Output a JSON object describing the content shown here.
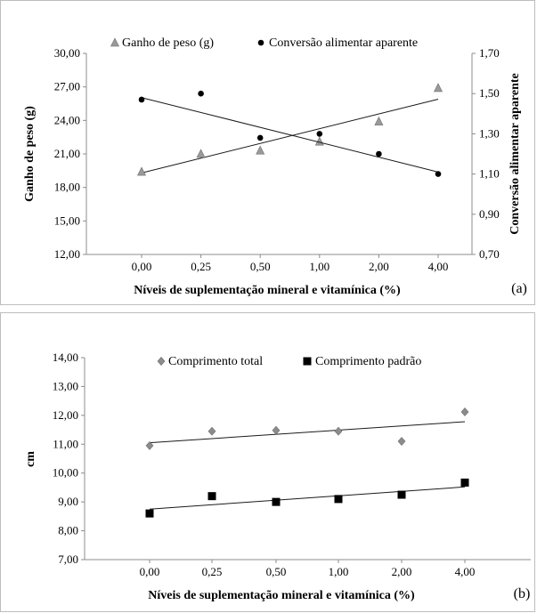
{
  "chart_data": [
    {
      "panel_label": "(a)",
      "type": "scatter",
      "x_categories": [
        "0,00",
        "0,25",
        "0,50",
        "1,00",
        "2,00",
        "4,00"
      ],
      "xlabel": "Níveis de suplementação mineral e vitamínica (%)",
      "ylabel": "Ganho de peso (g)",
      "ylabel_right": "Conversão alimentar aparente",
      "ylim": [
        12,
        30
      ],
      "ylim_right": [
        0.7,
        1.7
      ],
      "yticks": [
        "12,00",
        "15,00",
        "18,00",
        "21,00",
        "24,00",
        "27,00",
        "30,00"
      ],
      "yticks_right": [
        "0,70",
        "0,90",
        "1,10",
        "1,30",
        "1,50",
        "1,70"
      ],
      "legend_position": "top",
      "grid": false,
      "series": [
        {
          "name": "Ganho de peso (g)",
          "axis": "left",
          "marker": "triangle",
          "color": "#9a9a9a",
          "values": [
            19.4,
            21.0,
            21.3,
            22.1,
            23.9,
            26.9
          ],
          "trendline": [
            19.3,
            25.9
          ]
        },
        {
          "name": "Conversão alimentar aparente",
          "axis": "right",
          "marker": "circle",
          "color": "#000000",
          "values": [
            1.47,
            1.5,
            1.28,
            1.3,
            1.2,
            1.1
          ],
          "trendline": [
            1.48,
            1.11
          ]
        }
      ]
    },
    {
      "panel_label": "(b)",
      "type": "scatter",
      "x_categories": [
        "0,00",
        "0,25",
        "0,50",
        "1,00",
        "2,00",
        "4,00"
      ],
      "xlabel": "Níveis de suplementação mineral e vitamínica (%)",
      "ylabel": "cm",
      "ylim": [
        7,
        14
      ],
      "yticks": [
        "7,00",
        "8,00",
        "9,00",
        "10,00",
        "11,00",
        "12,00",
        "13,00",
        "14,00"
      ],
      "legend_position": "top",
      "grid": false,
      "series": [
        {
          "name": "Comprimento total",
          "marker": "diamond",
          "color": "#8c8c8c",
          "values": [
            10.95,
            11.45,
            11.48,
            11.45,
            11.1,
            12.12
          ],
          "trendline": [
            11.05,
            11.78
          ]
        },
        {
          "name": "Comprimento padrão",
          "marker": "square",
          "color": "#000000",
          "values": [
            8.6,
            9.2,
            9.0,
            9.1,
            9.25,
            9.67
          ],
          "trendline": [
            8.75,
            9.52
          ]
        }
      ]
    }
  ]
}
